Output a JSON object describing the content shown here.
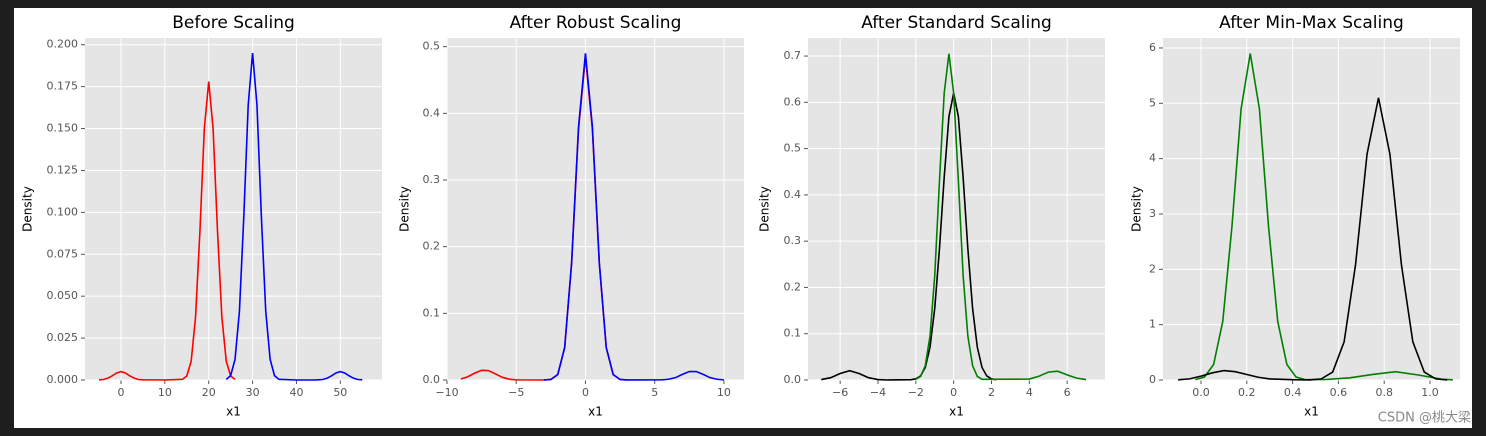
{
  "chart_data": [
    {
      "type": "line",
      "title": "Before Scaling",
      "x_label": "x1",
      "y_label": "Density",
      "xlim": [
        -8.2,
        59.5
      ],
      "ylim": [
        0,
        0.204
      ],
      "xticks": [
        0,
        10,
        20,
        30,
        40,
        50
      ],
      "yticks": [
        {
          "value": 0,
          "label": "0.000"
        },
        0.025,
        {
          "value": 0.05,
          "label": "0.050"
        },
        0.075,
        {
          "value": 0.1,
          "label": "0.100"
        },
        0.125,
        {
          "value": 0.15,
          "label": "0.150"
        },
        0.175,
        {
          "value": 0.2,
          "label": "0.200"
        }
      ],
      "grid": true,
      "series": [
        {
          "color": "#ff0000",
          "x": [
            -5,
            -4,
            -3,
            -2,
            -1,
            0,
            1,
            2,
            3,
            4,
            5,
            10,
            14,
            15,
            16,
            17,
            18,
            19,
            20,
            21,
            22,
            23,
            24,
            25,
            26
          ],
          "values": [
            0.0001,
            0.0003,
            0.0011,
            0.0025,
            0.0042,
            0.005,
            0.0042,
            0.0025,
            0.0011,
            0.0003,
            0.0001,
            0,
            0.0004,
            0.0024,
            0.0112,
            0.0375,
            0.089,
            0.15,
            0.178,
            0.15,
            0.089,
            0.0375,
            0.0112,
            0.0024,
            0.0004
          ]
        },
        {
          "color": "#0000ff",
          "x": [
            24,
            25,
            26,
            27,
            28,
            29,
            30,
            31,
            32,
            33,
            34,
            35,
            36,
            40,
            44,
            45,
            46,
            47,
            48,
            49,
            50,
            51,
            52,
            53,
            54,
            55
          ],
          "values": [
            0.0004,
            0.0026,
            0.0123,
            0.041,
            0.0975,
            0.164,
            0.195,
            0.164,
            0.0975,
            0.041,
            0.0123,
            0.0026,
            0.0004,
            0,
            0,
            0.0001,
            0.0003,
            0.0011,
            0.0025,
            0.0042,
            0.005,
            0.0042,
            0.0025,
            0.0011,
            0.0003,
            0.0001
          ]
        }
      ]
    },
    {
      "type": "line",
      "title": "After Robust Scaling",
      "x_label": "x1",
      "y_label": "Density",
      "xlim": [
        -10,
        11.45
      ],
      "ylim": [
        0,
        0.513
      ],
      "xticks": [
        {
          "value": -10,
          "label": "−10"
        },
        {
          "value": -5,
          "label": "−5"
        },
        0,
        5,
        10
      ],
      "yticks": [
        {
          "value": 0,
          "label": "0.0"
        },
        0.1,
        0.2,
        0.3,
        0.4,
        0.5
      ],
      "grid": true,
      "series": [
        {
          "color": "#ff0000",
          "x": [
            -9,
            -8.5,
            -8,
            -7.5,
            -7,
            -6.5,
            -6,
            -5.5,
            -5,
            -3,
            -2.5,
            -2,
            -1.5,
            -1,
            -0.5,
            0,
            0.5,
            1,
            1.5,
            2,
            2.5,
            3
          ],
          "values": [
            0.0015,
            0.0049,
            0.0103,
            0.0146,
            0.014,
            0.0091,
            0.004,
            0.0012,
            0.0002,
            0,
            0.0008,
            0.0082,
            0.0485,
            0.175,
            0.376,
            0.485,
            0.376,
            0.175,
            0.0485,
            0.0082,
            0.0008,
            0
          ]
        },
        {
          "color": "#0000ff",
          "x": [
            -3,
            -2.5,
            -2,
            -1.5,
            -1,
            -0.5,
            0,
            0.5,
            1,
            1.5,
            2,
            2.5,
            3,
            5.5,
            6,
            6.5,
            7,
            7.5,
            8,
            8.5,
            9,
            9.5,
            10
          ],
          "values": [
            0,
            0.0008,
            0.0083,
            0.049,
            0.176,
            0.38,
            0.49,
            0.38,
            0.176,
            0.049,
            0.0083,
            0.0008,
            0.0001,
            0.0002,
            0.0011,
            0.0035,
            0.0084,
            0.0127,
            0.0127,
            0.0084,
            0.0035,
            0.0011,
            0.0002
          ]
        }
      ]
    },
    {
      "type": "line",
      "title": "After Standard Scaling",
      "x_label": "x1",
      "y_label": "Density",
      "xlim": [
        -7.7,
        8.0
      ],
      "ylim": [
        0,
        0.739
      ],
      "xticks": [
        {
          "value": -6,
          "label": "−6"
        },
        {
          "value": -4,
          "label": "−4"
        },
        {
          "value": -2,
          "label": "−2"
        },
        0,
        2,
        4,
        6
      ],
      "yticks": [
        {
          "value": 0,
          "label": "0.0"
        },
        0.1,
        0.2,
        0.3,
        0.4,
        0.5,
        0.6,
        0.7
      ],
      "grid": true,
      "series": [
        {
          "color": "#000000",
          "x": [
            -7,
            -6.5,
            -6,
            -5.5,
            -5,
            -4.5,
            -4,
            -3.5,
            -2.25,
            -2,
            -1.75,
            -1.5,
            -1.25,
            -1,
            -0.75,
            -0.5,
            -0.25,
            0,
            0.25,
            0.5,
            0.75,
            1,
            1.25,
            1.5,
            1.75,
            2,
            2.25
          ],
          "values": [
            0.001,
            0.005,
            0.014,
            0.02,
            0.014,
            0.005,
            0.001,
            0,
            0.0006,
            0.0025,
            0.0087,
            0.027,
            0.071,
            0.155,
            0.284,
            0.438,
            0.569,
            0.62,
            0.569,
            0.438,
            0.284,
            0.155,
            0.071,
            0.027,
            0.0087,
            0.0025,
            0.0006
          ]
        },
        {
          "color": "#008000",
          "x": [
            -2,
            -1.75,
            -1.5,
            -1.25,
            -1,
            -0.75,
            -0.5,
            -0.25,
            0,
            0.25,
            0.5,
            0.75,
            1,
            1.25,
            1.5,
            4,
            4.5,
            5,
            5.5,
            6,
            6.5,
            7
          ],
          "values": [
            0.0014,
            0.0078,
            0.031,
            0.095,
            0.226,
            0.43,
            0.62,
            0.705,
            0.62,
            0.43,
            0.226,
            0.095,
            0.031,
            0.0078,
            0.0014,
            0.002,
            0.008,
            0.017,
            0.019,
            0.011,
            0.004,
            0.001
          ]
        }
      ]
    },
    {
      "type": "line",
      "title": "After Min-Max Scaling",
      "x_label": "x1",
      "y_label": "Density",
      "xlim": [
        -0.166,
        1.131
      ],
      "ylim": [
        0,
        6.18
      ],
      "xticks": [
        {
          "value": 0,
          "label": "0.0"
        },
        0.2,
        0.4,
        0.6,
        0.8,
        {
          "value": 1,
          "label": "1.0"
        }
      ],
      "yticks": [
        0,
        1,
        2,
        3,
        4,
        5,
        6
      ],
      "grid": true,
      "series": [
        {
          "color": "#008000",
          "x": [
            -0.025,
            0.015,
            0.055,
            0.095,
            0.135,
            0.175,
            0.215,
            0.255,
            0.295,
            0.335,
            0.375,
            0.415,
            0.455,
            0.55,
            0.65,
            0.75,
            0.85,
            0.95,
            1.05,
            1.1
          ],
          "values": [
            0.0065,
            0.053,
            0.28,
            1.06,
            2.77,
            4.9,
            5.9,
            4.9,
            2.77,
            1.06,
            0.28,
            0.053,
            0.0065,
            0.01,
            0.04,
            0.1,
            0.15,
            0.09,
            0.015,
            0.003
          ]
        },
        {
          "color": "#000000",
          "x": [
            -0.1,
            -0.05,
            0,
            0.05,
            0.1,
            0.15,
            0.2,
            0.25,
            0.3,
            0.4,
            0.475,
            0.525,
            0.575,
            0.625,
            0.675,
            0.725,
            0.775,
            0.825,
            0.875,
            0.925,
            0.975,
            1.025,
            1.075
          ],
          "values": [
            0.003,
            0.02,
            0.07,
            0.13,
            0.17,
            0.15,
            0.1,
            0.05,
            0.02,
            0.005,
            0.0015,
            0.02,
            0.143,
            0.69,
            2.09,
            4.08,
            5.1,
            4.08,
            2.09,
            0.69,
            0.143,
            0.02,
            0.0015
          ]
        }
      ]
    }
  ],
  "watermark": "CSDN @桃大梁"
}
